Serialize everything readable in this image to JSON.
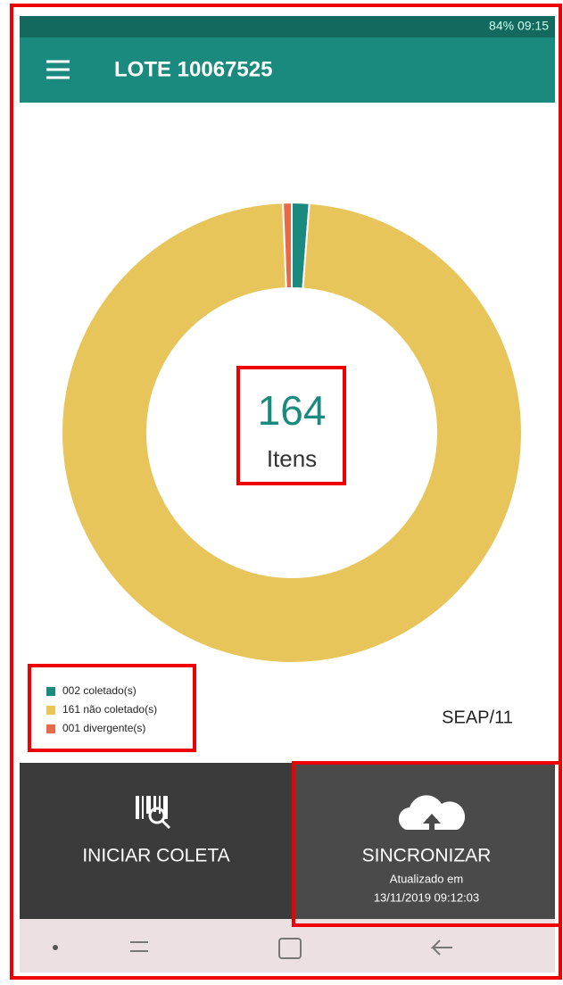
{
  "header": {
    "status": "84% 09:15",
    "title": "LOTE 10067525"
  },
  "chart_data": {
    "type": "donut",
    "total": 164,
    "total_label": "Itens",
    "categories": [
      "002 coletado(s)",
      "161 não coletado(s)",
      "001 divergente(s)"
    ],
    "values": [
      2,
      161,
      1
    ],
    "colors": [
      "#1a8a7e",
      "#e8c55a",
      "#e8694a"
    ]
  },
  "footer_code": "SEAP/11",
  "buttons": [
    {
      "label": "INICIAR COLETA"
    },
    {
      "label": "SINCRONIZAR",
      "note": "Atualizado em",
      "timestamp": "13/11/2019 09:12:03"
    }
  ]
}
